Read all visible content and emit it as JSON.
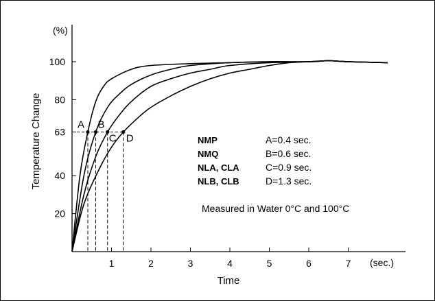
{
  "chart_data": {
    "type": "line",
    "xlabel": "Time",
    "ylabel": "Temperature Change",
    "x_unit": "(sec.)",
    "y_unit": "(%)",
    "xlim": [
      0,
      8.2
    ],
    "ylim": [
      0,
      115
    ],
    "x_ticks": [
      1,
      2,
      3,
      4,
      5,
      6,
      7
    ],
    "y_ticks": [
      20,
      40,
      63,
      80,
      100
    ],
    "grid": false,
    "series": [
      {
        "point": "A",
        "time_constant": 0.4,
        "x": [
          0,
          0.2,
          0.4,
          0.6,
          0.8,
          1.0,
          1.5,
          2.0,
          3.0,
          4.0,
          5.0,
          6.0,
          6.5,
          7.0,
          8.0
        ],
        "y": [
          0,
          40,
          63,
          79,
          87,
          91,
          96,
          98,
          99,
          99.5,
          100,
          100,
          100.5,
          100,
          99.5
        ]
      },
      {
        "point": "B",
        "time_constant": 0.6,
        "x": [
          0,
          0.3,
          0.6,
          0.9,
          1.2,
          1.5,
          2.0,
          2.5,
          3.0,
          4.0,
          5.0,
          6.0,
          6.5,
          7.0,
          8.0
        ],
        "y": [
          0,
          40,
          63,
          76,
          83,
          88,
          93,
          96,
          98,
          99.5,
          100,
          100,
          100.5,
          100,
          99.5
        ]
      },
      {
        "point": "C",
        "time_constant": 0.9,
        "x": [
          0,
          0.3,
          0.6,
          0.9,
          1.2,
          1.5,
          2.0,
          2.5,
          3.0,
          3.5,
          4.0,
          5.0,
          6.0,
          6.5,
          7.0,
          8.0
        ],
        "y": [
          0,
          30,
          50,
          63,
          72,
          79,
          87,
          91,
          94,
          96,
          98,
          99.5,
          100,
          100.5,
          100,
          99.5
        ]
      },
      {
        "point": "D",
        "time_constant": 1.3,
        "x": [
          0,
          0.3,
          0.7,
          1.0,
          1.3,
          1.7,
          2.0,
          2.5,
          3.0,
          3.5,
          4.0,
          4.5,
          5.0,
          5.5,
          6.0,
          6.5,
          7.0,
          8.0
        ],
        "y": [
          0,
          25,
          44,
          55,
          63,
          71,
          76,
          82,
          87,
          91,
          94,
          96,
          98,
          99.5,
          100,
          100.5,
          100,
          99.5
        ]
      }
    ],
    "points": [
      {
        "label": "A",
        "x": 0.4,
        "y": 63
      },
      {
        "label": "B",
        "x": 0.6,
        "y": 63
      },
      {
        "label": "C",
        "x": 0.9,
        "y": 63
      },
      {
        "label": "D",
        "x": 1.3,
        "y": 63
      }
    ],
    "legend": [
      {
        "name": "NMP",
        "value": "A=0.4 sec."
      },
      {
        "name": "NMQ",
        "value": "B=0.6 sec."
      },
      {
        "name": "NLA, CLA",
        "value": "C=0.9 sec."
      },
      {
        "name": "NLB, CLB",
        "value": "D=1.3 sec."
      }
    ],
    "note": "Measured in Water 0°C and 100°C"
  }
}
